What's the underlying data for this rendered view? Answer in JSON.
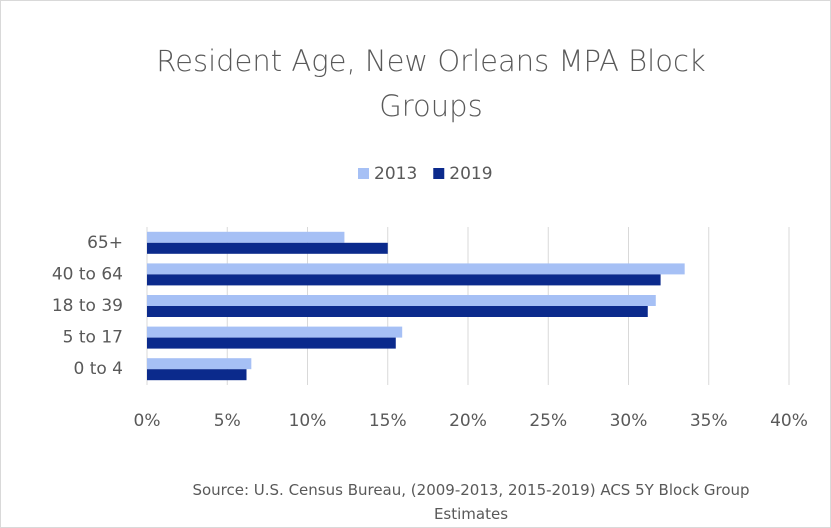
{
  "chart_data": {
    "type": "hbar",
    "title": "Resident Age, New Orleans MPA Block Groups",
    "source": "Source: U.S. Census Bureau, (2009-2013, 2015-2019) ACS 5Y Block Group Estimates",
    "categories": [
      "65+",
      "40 to 64",
      "18 to 39",
      "5 to 17",
      "0 to 4"
    ],
    "series": [
      {
        "name": "2013",
        "color": "#a6c0f5",
        "values": [
          12.3,
          33.5,
          31.7,
          15.9,
          6.5
        ]
      },
      {
        "name": "2019",
        "color": "#0b2a8c",
        "values": [
          15.0,
          32.0,
          31.2,
          15.5,
          6.2
        ]
      }
    ],
    "xlim": [
      0,
      40
    ],
    "xticks": [
      {
        "value": 0,
        "label": "0%"
      },
      {
        "value": 5,
        "label": "5%"
      },
      {
        "value": 10,
        "label": "10%"
      },
      {
        "value": 15,
        "label": "15%"
      },
      {
        "value": 20,
        "label": "20%"
      },
      {
        "value": 25,
        "label": "25%"
      },
      {
        "value": 30,
        "label": "30%"
      },
      {
        "value": 35,
        "label": "35%"
      },
      {
        "value": 40,
        "label": "40%"
      }
    ],
    "grid": true,
    "legend": "top"
  }
}
